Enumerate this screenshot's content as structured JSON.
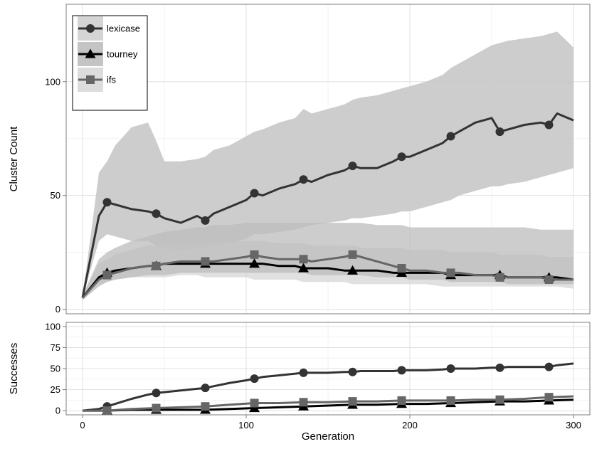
{
  "chart_data": [
    {
      "type": "line",
      "panel": "top",
      "xlabel": "",
      "ylabel": "Cluster Count",
      "xlim": [
        -10,
        310
      ],
      "ylim": [
        -2,
        134
      ],
      "x_ticks": [
        0,
        100,
        200,
        300
      ],
      "y_ticks": [
        0,
        50,
        100
      ],
      "y_tick_labels": [
        "0",
        "50",
        "100"
      ],
      "grid": "on",
      "legend_position": "top-left",
      "series": [
        {
          "name": "lexicase",
          "color": "#333333",
          "marker": "circle",
          "x": [
            0,
            10,
            15,
            20,
            30,
            40,
            45,
            50,
            60,
            70,
            75,
            80,
            90,
            100,
            105,
            110,
            120,
            130,
            135,
            140,
            150,
            160,
            165,
            170,
            180,
            190,
            195,
            200,
            210,
            220,
            225,
            230,
            240,
            250,
            255,
            260,
            270,
            280,
            285,
            290,
            300
          ],
          "y": [
            5,
            41,
            47,
            46,
            44,
            43,
            42,
            40,
            38,
            41,
            39,
            42,
            45,
            48,
            51,
            50,
            53,
            55,
            57,
            56,
            59,
            61,
            63,
            62,
            62,
            65,
            67,
            67,
            70,
            73,
            76,
            78,
            82,
            84,
            78,
            79,
            81,
            82,
            81,
            86,
            83
          ],
          "band_lower": [
            5,
            30,
            33,
            32,
            30,
            30,
            28,
            27,
            26,
            27,
            27,
            28,
            29,
            31,
            33,
            33,
            34,
            35,
            36,
            37,
            38,
            39,
            40,
            40,
            41,
            42,
            43,
            43,
            45,
            47,
            48,
            50,
            52,
            54,
            54,
            55,
            56,
            58,
            59,
            60,
            62
          ],
          "band_upper": [
            5,
            60,
            65,
            72,
            80,
            82,
            74,
            65,
            65,
            66,
            67,
            70,
            72,
            76,
            78,
            79,
            82,
            84,
            88,
            86,
            88,
            90,
            92,
            93,
            94,
            96,
            97,
            98,
            100,
            103,
            106,
            108,
            112,
            116,
            117,
            118,
            119,
            120,
            121,
            122,
            115
          ]
        },
        {
          "name": "tourney",
          "color": "#000000",
          "marker": "triangle",
          "x": [
            0,
            10,
            15,
            20,
            30,
            40,
            45,
            50,
            60,
            70,
            75,
            80,
            90,
            100,
            105,
            110,
            120,
            130,
            135,
            140,
            150,
            160,
            165,
            170,
            180,
            190,
            195,
            200,
            210,
            220,
            225,
            230,
            240,
            250,
            255,
            260,
            270,
            280,
            285,
            290,
            300
          ],
          "y": [
            5,
            14,
            16,
            17,
            18,
            19,
            19,
            20,
            20,
            20,
            20,
            20,
            20,
            20,
            20,
            20,
            19,
            19,
            18,
            18,
            18,
            17,
            17,
            17,
            17,
            16,
            16,
            16,
            16,
            16,
            15,
            15,
            15,
            15,
            15,
            14,
            14,
            14,
            14,
            14,
            13
          ],
          "band_lower": [
            4,
            11,
            12,
            13,
            14,
            14,
            14,
            14,
            15,
            15,
            14,
            14,
            14,
            14,
            13,
            13,
            13,
            13,
            12,
            12,
            12,
            12,
            11,
            11,
            11,
            11,
            11,
            11,
            11,
            10,
            10,
            10,
            10,
            10,
            10,
            10,
            10,
            10,
            10,
            10,
            9
          ],
          "band_upper": [
            6,
            20,
            22,
            24,
            26,
            28,
            28,
            29,
            29,
            29,
            30,
            30,
            30,
            30,
            30,
            30,
            29,
            29,
            29,
            28,
            28,
            28,
            28,
            27,
            27,
            27,
            27,
            26,
            26,
            26,
            25,
            25,
            25,
            25,
            24,
            24,
            24,
            24,
            23,
            23,
            23
          ]
        },
        {
          "name": "ifs",
          "color": "#666666",
          "marker": "square",
          "x": [
            0,
            10,
            15,
            20,
            30,
            40,
            45,
            50,
            60,
            70,
            75,
            80,
            90,
            100,
            105,
            110,
            120,
            130,
            135,
            140,
            150,
            160,
            165,
            170,
            180,
            190,
            195,
            200,
            210,
            220,
            225,
            230,
            240,
            250,
            255,
            260,
            270,
            280,
            285,
            290,
            300
          ],
          "y": [
            5,
            13,
            15,
            16,
            18,
            19,
            19,
            20,
            21,
            21,
            21,
            21,
            22,
            23,
            24,
            23,
            22,
            22,
            22,
            21,
            22,
            23,
            24,
            23,
            21,
            19,
            18,
            17,
            17,
            16,
            16,
            16,
            15,
            15,
            14,
            14,
            14,
            14,
            13,
            13,
            13
          ],
          "band_lower": [
            4,
            10,
            12,
            13,
            14,
            15,
            15,
            15,
            16,
            16,
            16,
            16,
            16,
            16,
            16,
            16,
            16,
            16,
            16,
            15,
            15,
            15,
            15,
            15,
            14,
            14,
            14,
            13,
            13,
            13,
            12,
            12,
            12,
            12,
            12,
            11,
            11,
            11,
            11,
            11,
            11
          ],
          "band_upper": [
            6,
            22,
            25,
            27,
            30,
            32,
            33,
            34,
            35,
            36,
            36,
            37,
            37,
            38,
            38,
            38,
            38,
            38,
            38,
            38,
            38,
            38,
            38,
            38,
            37,
            37,
            37,
            36,
            36,
            36,
            36,
            36,
            36,
            36,
            36,
            36,
            36,
            35,
            35,
            35,
            35
          ]
        }
      ],
      "legend": [
        "lexicase",
        "tourney",
        "ifs"
      ]
    },
    {
      "type": "line",
      "panel": "bottom",
      "xlabel": "Generation",
      "ylabel": "Successes",
      "xlim": [
        -10,
        310
      ],
      "ylim": [
        -5,
        105
      ],
      "x_ticks": [
        0,
        100,
        200,
        300
      ],
      "x_tick_labels": [
        "0",
        "100",
        "200",
        "300"
      ],
      "y_ticks": [
        0,
        25,
        50,
        75,
        100
      ],
      "y_tick_labels": [
        "0",
        "25",
        "50",
        "75",
        "100"
      ],
      "grid": "on",
      "series": [
        {
          "name": "lexicase",
          "color": "#333333",
          "marker": "circle",
          "x": [
            0,
            10,
            15,
            20,
            30,
            40,
            45,
            50,
            60,
            70,
            75,
            80,
            90,
            100,
            105,
            110,
            120,
            130,
            135,
            140,
            150,
            160,
            165,
            170,
            180,
            190,
            195,
            200,
            210,
            220,
            225,
            230,
            240,
            250,
            255,
            260,
            270,
            280,
            285,
            290,
            300
          ],
          "y": [
            0,
            2,
            5,
            8,
            14,
            19,
            21,
            22,
            24,
            26,
            27,
            29,
            33,
            36,
            38,
            40,
            42,
            44,
            45,
            45,
            45,
            46,
            46,
            47,
            47,
            47,
            48,
            48,
            48,
            49,
            50,
            50,
            50,
            51,
            51,
            52,
            52,
            52,
            52,
            54,
            56
          ]
        },
        {
          "name": "tourney",
          "color": "#000000",
          "marker": "triangle",
          "x": [
            0,
            15,
            30,
            45,
            60,
            75,
            90,
            105,
            120,
            135,
            150,
            165,
            180,
            195,
            210,
            225,
            240,
            255,
            270,
            285,
            300
          ],
          "y": [
            0,
            0,
            1,
            1,
            1,
            1,
            2,
            3,
            4,
            5,
            6,
            7,
            7,
            8,
            8,
            9,
            10,
            11,
            11,
            12,
            13
          ]
        },
        {
          "name": "ifs",
          "color": "#666666",
          "marker": "square",
          "x": [
            0,
            15,
            30,
            45,
            60,
            75,
            90,
            105,
            120,
            135,
            150,
            165,
            180,
            195,
            210,
            225,
            240,
            255,
            270,
            285,
            300
          ],
          "y": [
            0,
            0,
            2,
            3,
            4,
            5,
            7,
            9,
            9,
            10,
            10,
            11,
            11,
            12,
            12,
            12,
            13,
            13,
            14,
            16,
            17
          ]
        }
      ]
    }
  ]
}
